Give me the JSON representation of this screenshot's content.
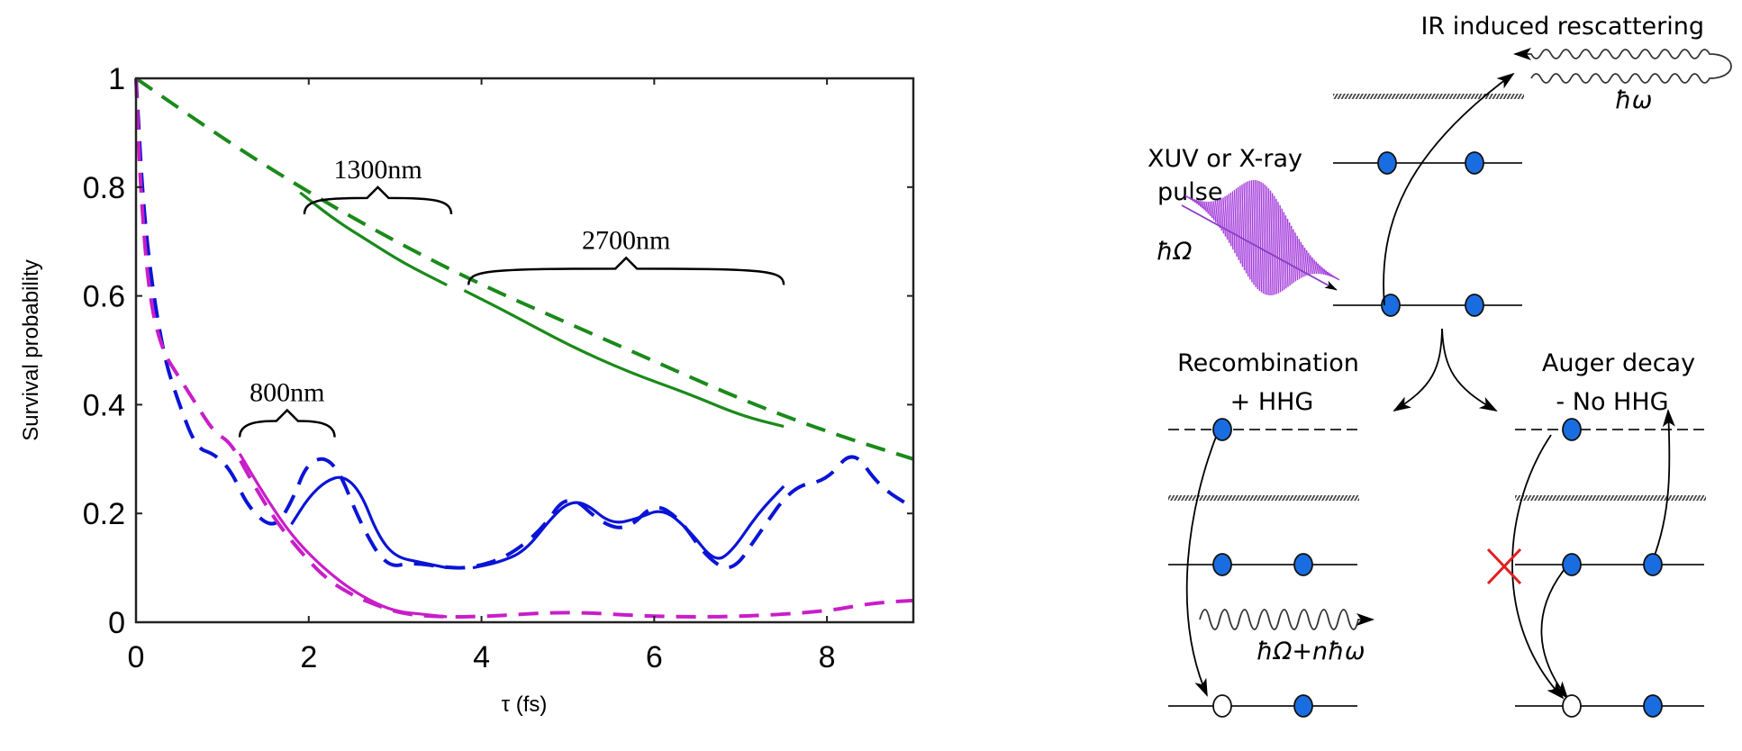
{
  "chart_data": {
    "type": "line",
    "title": "",
    "xlabel": "τ (fs)",
    "ylabel": "Survival probability",
    "xlim": [
      0,
      9
    ],
    "ylim": [
      0,
      1
    ],
    "xticks": [
      0,
      2,
      4,
      6,
      8
    ],
    "xtick_labels": [
      "0",
      "2",
      "4",
      "6",
      "8"
    ],
    "yticks": [
      0,
      0.2,
      0.4,
      0.6,
      0.8,
      1
    ],
    "ytick_labels": [
      "0",
      "0.2",
      "0.4",
      "0.6",
      "0.8",
      "1"
    ],
    "grid": false,
    "legend": "none",
    "series": [
      {
        "name": "green-fit",
        "color": "#1a8a1a",
        "style": "dashed",
        "x": [
          0,
          1,
          2,
          3,
          4,
          5,
          6,
          7,
          8,
          9
        ],
        "y": [
          1.0,
          0.89,
          0.79,
          0.7,
          0.62,
          0.55,
          0.48,
          0.41,
          0.35,
          0.3
        ]
      },
      {
        "name": "green-data-1300nm",
        "color": "#1a8a1a",
        "style": "solid",
        "x": [
          1.9,
          2.3,
          2.7,
          3.1,
          3.6
        ],
        "y": [
          0.79,
          0.74,
          0.7,
          0.66,
          0.62
        ]
      },
      {
        "name": "green-data-2700nm",
        "color": "#1a8a1a",
        "style": "solid",
        "x": [
          3.8,
          4.3,
          5.0,
          5.7,
          6.4,
          7.0,
          7.5
        ],
        "y": [
          0.61,
          0.57,
          0.51,
          0.46,
          0.42,
          0.38,
          0.36
        ]
      },
      {
        "name": "blue-dashed",
        "color": "#0a14d6",
        "style": "dashed",
        "x": [
          0,
          0.1,
          0.3,
          0.5,
          0.7,
          0.9,
          1.1,
          1.3,
          1.6,
          1.8,
          2.0,
          2.3,
          2.6,
          2.9,
          3.2,
          3.6,
          3.9,
          4.3,
          4.7,
          5.0,
          5.4,
          5.7,
          6.0,
          6.3,
          6.6,
          6.9,
          7.2,
          7.6,
          8.0,
          8.3,
          8.6,
          9.0
        ],
        "y": [
          1.0,
          0.72,
          0.5,
          0.4,
          0.32,
          0.31,
          0.28,
          0.21,
          0.17,
          0.22,
          0.3,
          0.3,
          0.18,
          0.1,
          0.11,
          0.1,
          0.1,
          0.12,
          0.17,
          0.24,
          0.18,
          0.17,
          0.22,
          0.19,
          0.12,
          0.09,
          0.16,
          0.25,
          0.26,
          0.32,
          0.25,
          0.21
        ]
      },
      {
        "name": "blue-data-800nm",
        "color": "#0a14d6",
        "style": "solid",
        "x": [
          1.8,
          2.0,
          2.2,
          2.4,
          2.6,
          2.8,
          3.0,
          3.3,
          3.6
        ],
        "y": [
          0.18,
          0.23,
          0.26,
          0.27,
          0.24,
          0.16,
          0.12,
          0.11,
          0.1
        ]
      },
      {
        "name": "blue-data-2700nm",
        "color": "#0a14d6",
        "style": "solid",
        "x": [
          3.9,
          4.2,
          4.5,
          4.8,
          5.0,
          5.2,
          5.5,
          5.8,
          6.1,
          6.4,
          6.7,
          6.9,
          7.2,
          7.5
        ],
        "y": [
          0.1,
          0.11,
          0.13,
          0.19,
          0.22,
          0.22,
          0.18,
          0.19,
          0.21,
          0.17,
          0.11,
          0.13,
          0.2,
          0.25
        ]
      },
      {
        "name": "magenta-dashed",
        "color": "#c81ec8",
        "style": "dashed",
        "x": [
          0,
          0.05,
          0.15,
          0.3,
          0.5,
          0.7,
          0.9,
          1.1,
          1.3,
          1.6,
          1.9,
          2.2,
          2.5,
          2.8,
          3.1,
          3.5,
          4.0,
          5.0,
          6.0,
          7.0,
          8.0,
          8.5,
          9.0
        ],
        "y": [
          1.0,
          0.8,
          0.6,
          0.5,
          0.45,
          0.4,
          0.35,
          0.33,
          0.27,
          0.19,
          0.13,
          0.08,
          0.05,
          0.03,
          0.015,
          0.01,
          0.01,
          0.02,
          0.01,
          0.01,
          0.02,
          0.035,
          0.04
        ]
      },
      {
        "name": "magenta-data",
        "color": "#c81ec8",
        "style": "solid",
        "x": [
          1.2,
          1.5,
          1.8,
          2.1,
          2.4,
          2.7,
          3.0,
          3.3,
          3.6
        ],
        "y": [
          0.31,
          0.23,
          0.16,
          0.11,
          0.07,
          0.04,
          0.02,
          0.015,
          0.01
        ]
      }
    ],
    "annotations": [
      {
        "text": "1300nm",
        "x_range": [
          1.95,
          3.65
        ],
        "y": 0.78
      },
      {
        "text": "2700nm",
        "x_range": [
          3.85,
          7.5
        ],
        "y": 0.65
      },
      {
        "text": "800nm",
        "x_range": [
          1.2,
          2.3
        ],
        "y": 0.37
      }
    ]
  },
  "diagram": {
    "title_rescattering": "IR induced rescattering",
    "hbar_omega": "ħω",
    "pulse_label_line1": "XUV or X-ray",
    "pulse_label_line2": "pulse",
    "hbar_Omega": "ħΩ",
    "recombination_line1": "Recombination",
    "recombination_line2": "+ HHG",
    "auger_line1": "Auger decay",
    "auger_line2": "- No HHG",
    "emission_label": "ħΩ+nħω",
    "colors": {
      "electron": "#1a6de0",
      "pulse": "#a43bdb",
      "blocked": "#e02020"
    }
  }
}
